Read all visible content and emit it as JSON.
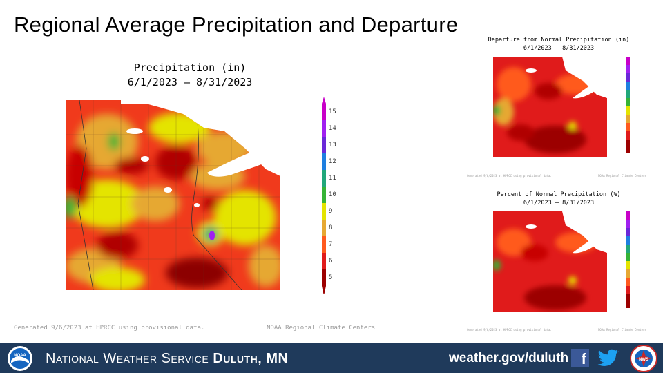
{
  "slide_title": "Regional Average Precipitation and Departure",
  "main_map": {
    "title_line1": "Precipitation (in)",
    "title_line2": "6/1/2023 – 8/31/2023",
    "legend": [
      "15",
      "14",
      "13",
      "12",
      "11",
      "10",
      "9",
      "8",
      "7",
      "6",
      "5"
    ],
    "footnote_left": "Generated 9/6/2023 at HPRCC using provisional data.",
    "footnote_right": "NOAA Regional Climate Centers"
  },
  "departure_map": {
    "title_line1": "Departure from Normal Precipitation (in)",
    "title_line2": "6/1/2023 – 8/31/2023",
    "footnote_left": "Generated 9/6/2023 at HPRCC using provisional data.",
    "footnote_right": "NOAA Regional Climate Centers"
  },
  "percent_map": {
    "title_line1": "Percent of Normal Precipitation (%)",
    "title_line2": "6/1/2023 – 8/31/2023",
    "footnote_left": "Generated 9/6/2023 at HPRCC using provisional data.",
    "footnote_right": "NOAA Regional Climate Centers"
  },
  "footer": {
    "org_prefix": "National Weather Service",
    "org_office": "Duluth, MN",
    "website": "weather.gov/duluth",
    "noaa_logo_text": "NOAA",
    "nws_logo_text": "NWS"
  },
  "colors": {
    "footer_bg": "#1f3a5b",
    "legend": [
      "#c800c8",
      "#a020f0",
      "#6a28d8",
      "#1e7fe0",
      "#21a77a",
      "#36b336",
      "#e4e400",
      "#e6a833",
      "#ff5a1e",
      "#e01b1b",
      "#9c0000"
    ]
  }
}
